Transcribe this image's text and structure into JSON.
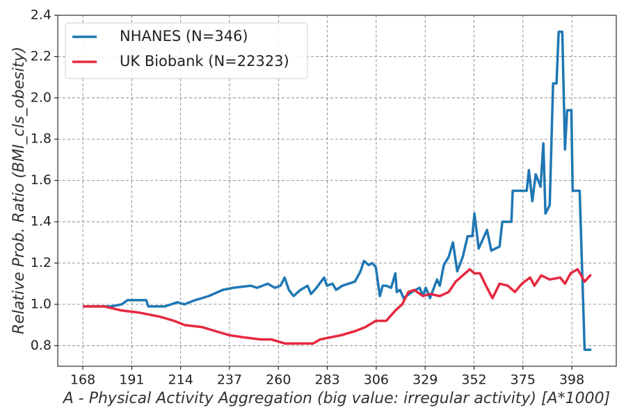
{
  "chart_data": {
    "type": "line",
    "x_label": "A - Physical Activity Aggregation (big value: irregular activity) [A*1000]",
    "y_label": "Relative Prob. Ratio (BMI_cls_obesity)",
    "xlim": [
      156.2,
      418.9
    ],
    "ylim": [
      0.7,
      2.4
    ],
    "xticks": [
      168,
      191,
      214,
      237,
      260,
      283,
      306,
      329,
      352,
      375,
      398
    ],
    "yticks": [
      0.8,
      {
        "value": 1.0,
        "label": "1.0"
      },
      1.2,
      1.4,
      1.6,
      1.8,
      {
        "value": 2.0,
        "label": "2.0"
      },
      2.2,
      2.4
    ],
    "grid": true,
    "legend_position": "upper-left",
    "series": [
      {
        "name": "NHANES (N=346)",
        "color": "#1f77b4",
        "x": [
          168,
          181.4,
          186.3,
          189,
          197.8,
          198.8,
          206.6,
          212.5,
          215.8,
          220.7,
          224,
          227.2,
          233.8,
          238.7,
          246.9,
          250,
          255,
          258.3,
          261,
          262.9,
          264.9,
          267.1,
          270.4,
          273.7,
          275.3,
          277.9,
          281.5,
          282.8,
          285.5,
          287.1,
          290.1,
          296,
          298.6,
          300.2,
          302.5,
          304.1,
          305.8,
          307.7,
          309,
          310.7,
          313,
          315,
          315.7,
          317.2,
          318.9,
          322.8,
          326.4,
          328,
          329.3,
          331.3,
          334.6,
          335.9,
          337.8,
          340.1,
          342.1,
          344.1,
          346.7,
          349,
          351.2,
          352.2,
          354.2,
          358.1,
          360.1,
          364,
          365.3,
          369.6,
          370.2,
          376.8,
          377.8,
          379.4,
          381,
          383.3,
          384.6,
          385.6,
          387.6,
          389.2,
          390.8,
          391.8,
          393.5,
          394.8,
          395.8,
          397.8,
          398.4,
          401.7,
          404,
          407.2
        ],
        "values": [
          0.99,
          0.99,
          1.0,
          1.02,
          1.02,
          0.99,
          0.99,
          1.01,
          1.0,
          1.02,
          1.03,
          1.04,
          1.07,
          1.08,
          1.09,
          1.08,
          1.1,
          1.08,
          1.09,
          1.13,
          1.07,
          1.04,
          1.07,
          1.09,
          1.05,
          1.08,
          1.13,
          1.09,
          1.1,
          1.07,
          1.09,
          1.11,
          1.16,
          1.21,
          1.19,
          1.2,
          1.18,
          1.04,
          1.09,
          1.09,
          1.08,
          1.15,
          1.06,
          1.07,
          1.03,
          1.06,
          1.08,
          1.04,
          1.08,
          1.03,
          1.12,
          1.09,
          1.19,
          1.23,
          1.3,
          1.16,
          1.23,
          1.33,
          1.33,
          1.44,
          1.27,
          1.36,
          1.26,
          1.28,
          1.4,
          1.4,
          1.55,
          1.55,
          1.65,
          1.5,
          1.63,
          1.57,
          1.78,
          1.44,
          1.48,
          2.07,
          2.07,
          2.32,
          2.32,
          1.75,
          1.94,
          1.94,
          1.55,
          1.55,
          0.78,
          0.78
        ]
      },
      {
        "name": "UK Biobank (N=22323)",
        "color": "#e6283f",
        "x": [
          168,
          178.1,
          186.3,
          194.5,
          204.3,
          210.9,
          215.8,
          224,
          230.5,
          237.1,
          243.6,
          251.8,
          256.7,
          260,
          263.2,
          269.8,
          276.3,
          279.6,
          284.5,
          289.4,
          296,
          300.9,
          305.8,
          310.7,
          315,
          318.2,
          321.1,
          323.8,
          328,
          331.3,
          335.9,
          340.1,
          343.4,
          346.7,
          350,
          352.2,
          354.8,
          358.1,
          360.7,
          364,
          367.9,
          371.2,
          374.5,
          378.4,
          380.4,
          383.6,
          387.6,
          392.5,
          394.8,
          397.4,
          400.7,
          404,
          406.6,
          407.2
        ],
        "values": [
          0.99,
          0.99,
          0.97,
          0.96,
          0.94,
          0.92,
          0.9,
          0.89,
          0.87,
          0.85,
          0.84,
          0.83,
          0.83,
          0.82,
          0.81,
          0.81,
          0.81,
          0.83,
          0.84,
          0.85,
          0.87,
          0.89,
          0.92,
          0.92,
          0.97,
          1.0,
          1.06,
          1.07,
          1.04,
          1.05,
          1.04,
          1.06,
          1.11,
          1.14,
          1.17,
          1.15,
          1.15,
          1.08,
          1.03,
          1.1,
          1.09,
          1.06,
          1.1,
          1.13,
          1.09,
          1.14,
          1.12,
          1.13,
          1.1,
          1.15,
          1.17,
          1.11,
          1.14,
          1.14
        ]
      }
    ]
  }
}
